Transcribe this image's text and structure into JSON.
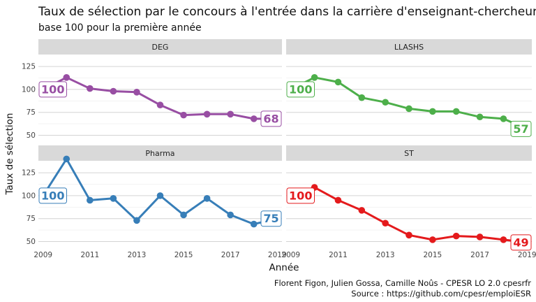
{
  "chart_data": {
    "type": "line",
    "title": "Taux de sélection par le concours à l'entrée dans la carrière d'enseignant-chercheur",
    "subtitle": "base 100 pour la première année",
    "xlabel": "Année",
    "ylabel": "Taux de sélection",
    "caption_line1": "Florent Figon, Julien Gossa, Camille Noûs - CPESR LO 2.0 cpesrfr",
    "caption_line2": "Source : https://github.com/cpesr/emploiESR",
    "x_ticks": [
      "2009",
      "2011",
      "2013",
      "2015",
      "2017",
      "2019"
    ],
    "y_ticks": [
      "50",
      "75",
      "100",
      "125"
    ],
    "xlim": [
      2008.8,
      2019.2
    ],
    "ylim": [
      42,
      138
    ],
    "grid": true,
    "legend": "none",
    "x": [
      2009,
      2010,
      2011,
      2012,
      2013,
      2014,
      2015,
      2016,
      2017,
      2018,
      2019
    ],
    "panels": [
      {
        "name": "DEG",
        "color": "#984ea3",
        "values": [
          100,
          113,
          101,
          98,
          97,
          83,
          72,
          73,
          73,
          68,
          68
        ],
        "start_label": "100",
        "end_label": "68"
      },
      {
        "name": "LLASHS",
        "color": "#4daf4a",
        "values": [
          100,
          113,
          108,
          91,
          86,
          79,
          76,
          76,
          70,
          68,
          57
        ],
        "start_label": "100",
        "end_label": "57"
      },
      {
        "name": "Pharma",
        "color": "#377eb8",
        "values": [
          100,
          140,
          95,
          97,
          73,
          100,
          79,
          97,
          79,
          69,
          75
        ],
        "start_label": "100",
        "end_label": "75"
      },
      {
        "name": "ST",
        "color": "#e41a1c",
        "values": [
          100,
          109,
          95,
          84,
          70,
          57,
          52,
          56,
          55,
          52,
          49
        ],
        "start_label": "100",
        "end_label": "49"
      }
    ]
  }
}
